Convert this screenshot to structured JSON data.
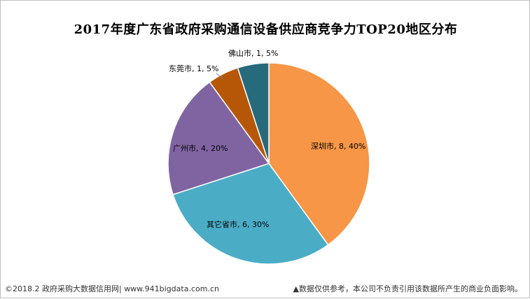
{
  "chart_data": {
    "type": "pie",
    "title": "2017年度广东省政府采购通信设备供应商竞争力TOP20地区分布",
    "slices": [
      {
        "label": "深圳市, 8, 40%",
        "name": "深圳市",
        "value": 8,
        "percent": 40,
        "color": "#f79646"
      },
      {
        "label": "其它省市, 6, 30%",
        "name": "其它省市",
        "value": 6,
        "percent": 30,
        "color": "#4bacc6"
      },
      {
        "label": "广州市, 4, 20%",
        "name": "广州市",
        "value": 4,
        "percent": 20,
        "color": "#8064a2"
      },
      {
        "label": "东莞市, 1, 5%",
        "name": "东莞市",
        "value": 1,
        "percent": 5,
        "color": "#b65708"
      },
      {
        "label": "佛山市, 1, 5%",
        "name": "佛山市",
        "value": 1,
        "percent": 5,
        "color": "#276a7c"
      }
    ],
    "legend": "none",
    "start_angle": "12 o'clock, clockwise"
  },
  "footer": {
    "left": "©2018.2 政府采购大数据信用网| www.941bigdata.com.cn",
    "right": "▲数据仅供参考，本公司不负责引用该数据所产生的商业负面影响。"
  }
}
